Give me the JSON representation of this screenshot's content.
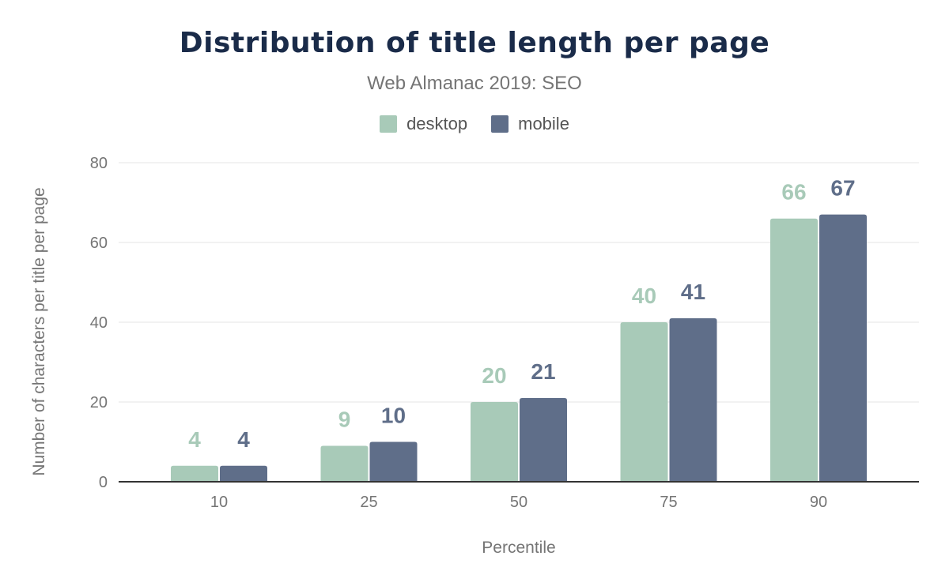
{
  "chart_data": {
    "type": "bar",
    "title": "Distribution of title length per page",
    "subtitle": "Web Almanac 2019: SEO",
    "xlabel": "Percentile",
    "ylabel": "Number of characters per title per page",
    "categories": [
      "10",
      "25",
      "50",
      "75",
      "90"
    ],
    "series": [
      {
        "name": "desktop",
        "color": "#a8cab8",
        "values": [
          4,
          9,
          20,
          40,
          66
        ]
      },
      {
        "name": "mobile",
        "color": "#5f6e89",
        "values": [
          4,
          10,
          21,
          41,
          67
        ]
      }
    ],
    "ylim": [
      0,
      80
    ],
    "yticks": [
      0,
      20,
      40,
      60,
      80
    ],
    "grid": true,
    "legend_position": "top-center",
    "data_labels": true
  }
}
